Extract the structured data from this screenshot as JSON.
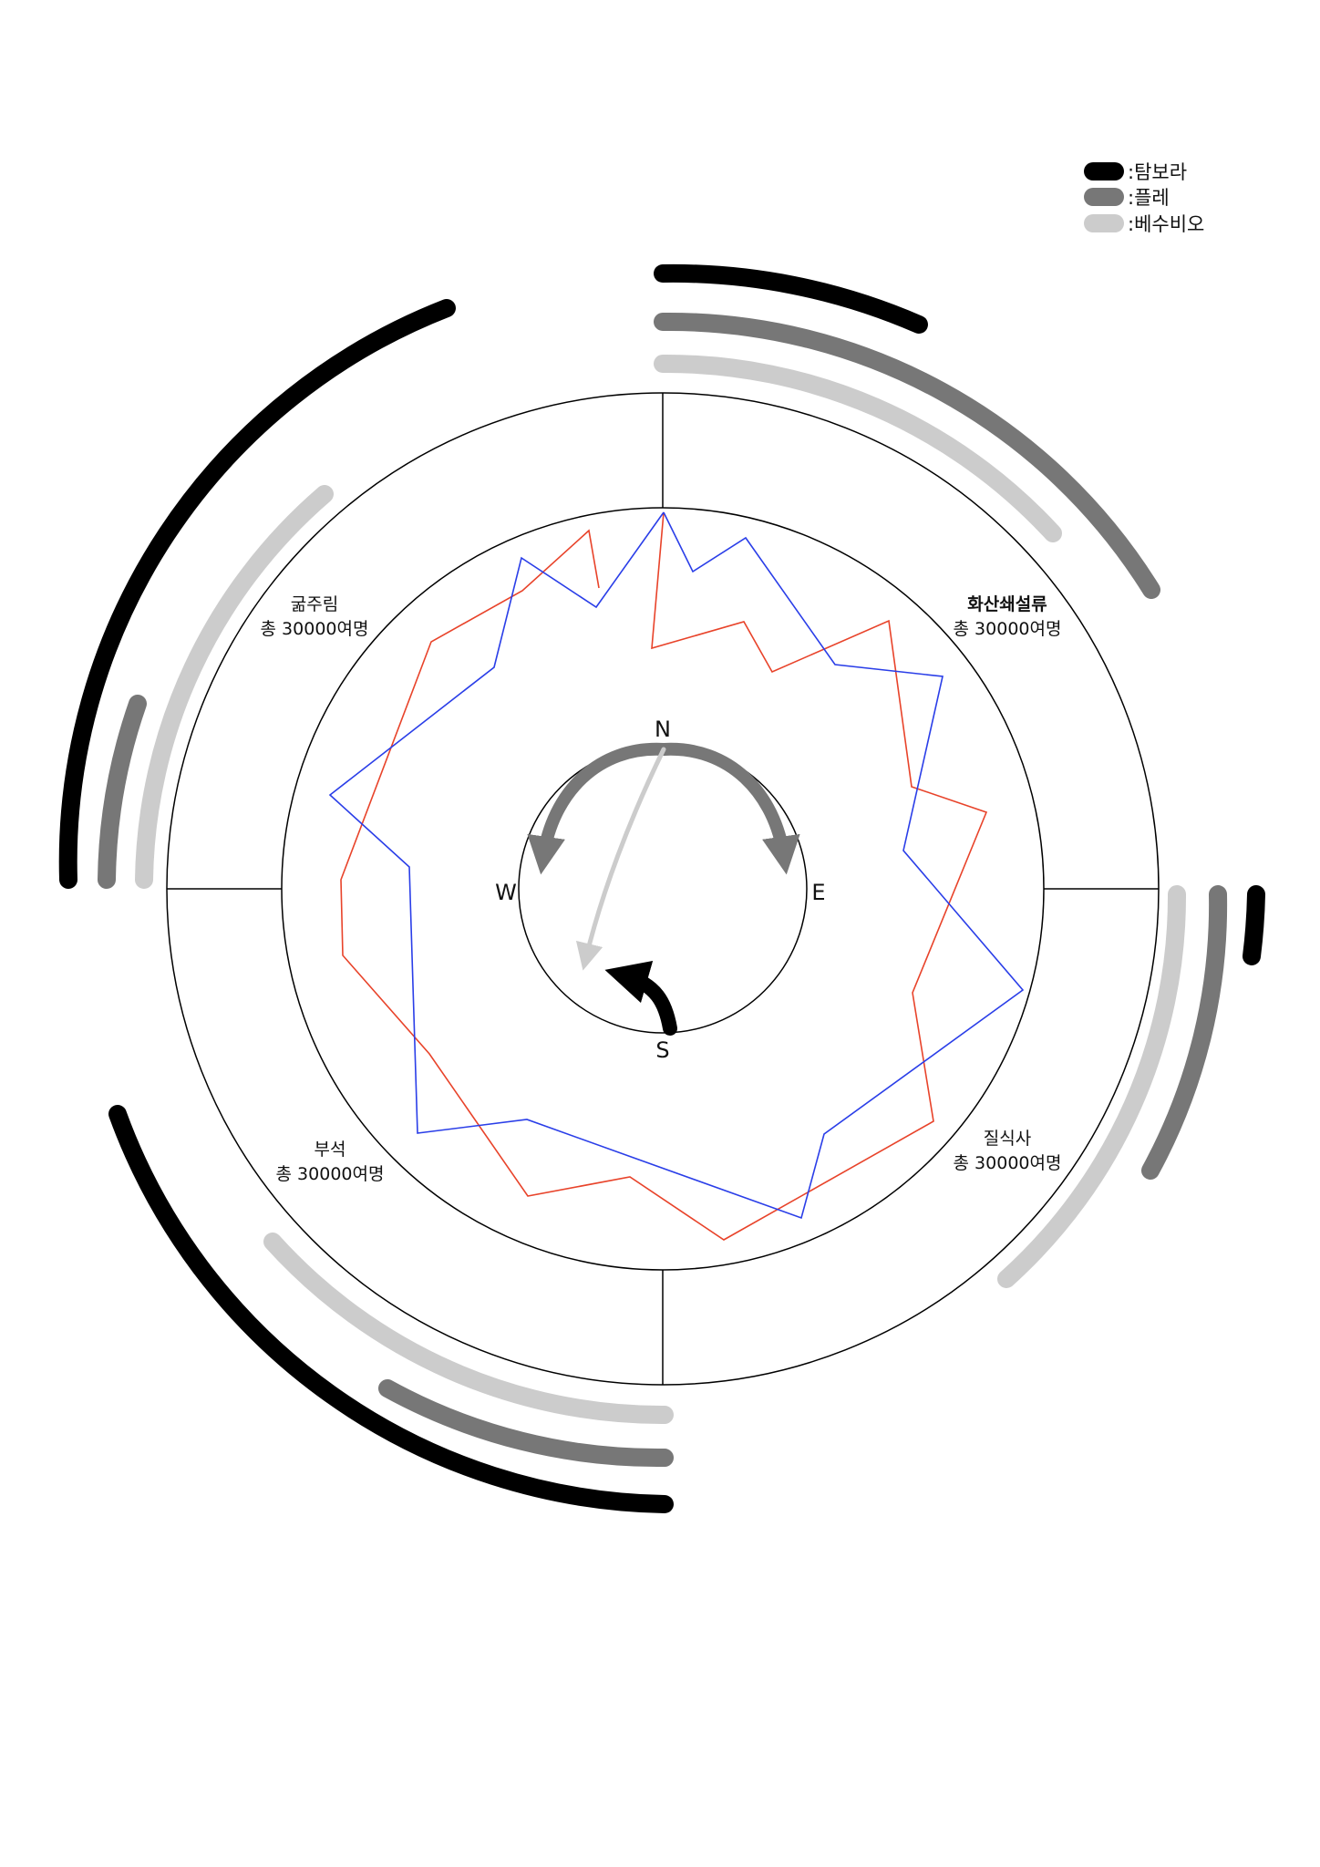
{
  "legend": [
    {
      "label": ":탐보라",
      "color": "#000000"
    },
    {
      "label": ":플레",
      "color": "#777777"
    },
    {
      "label": ":베수비오",
      "color": "#cccccc"
    }
  ],
  "compass": {
    "north": "N",
    "east": "E",
    "south": "S",
    "west": "W"
  },
  "regions": [
    {
      "name": "굶주림",
      "total": "총 30000여명",
      "bold": false
    },
    {
      "name": "화산쇄설류",
      "total": "총 30000여명",
      "bold": true
    },
    {
      "name": "질식사",
      "total": "총 30000여명",
      "bold": false
    },
    {
      "name": "부석",
      "total": "총 30000여명",
      "bold": false
    }
  ],
  "series_colors": {
    "red": "#e8432a",
    "blue": "#2a3ee8"
  }
}
